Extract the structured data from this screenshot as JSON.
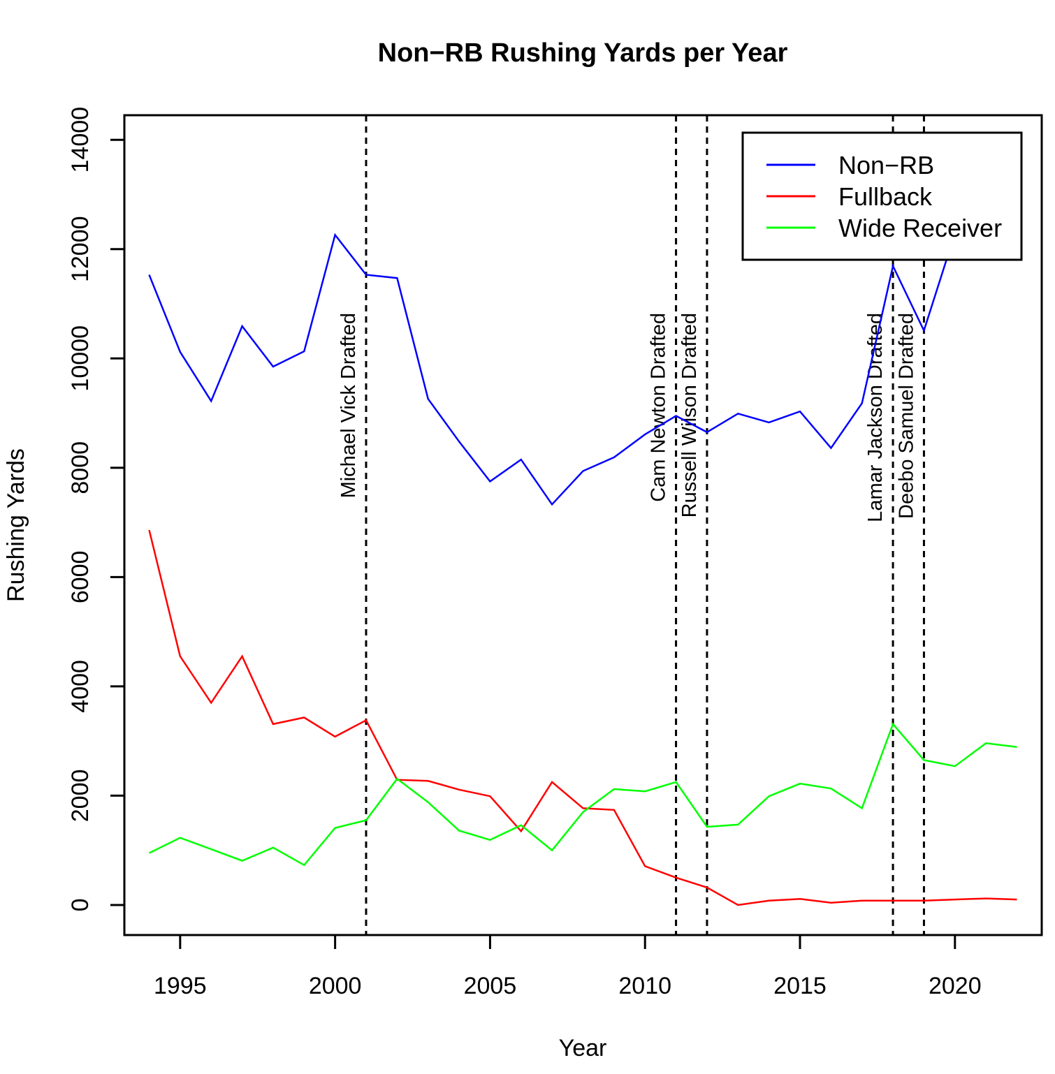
{
  "chart_data": {
    "type": "line",
    "title": "Non−RB Rushing Yards per Year",
    "xlabel": "Year",
    "ylabel": "Rushing Yards",
    "xlim": [
      1993.2,
      2022.8
    ],
    "ylim": [
      -550,
      14450
    ],
    "x_ticks": [
      1995,
      2000,
      2005,
      2010,
      2015,
      2020
    ],
    "y_ticks": [
      0,
      2000,
      4000,
      6000,
      8000,
      10000,
      12000,
      14000
    ],
    "x": [
      1994,
      1995,
      1996,
      1997,
      1998,
      1999,
      2000,
      2001,
      2002,
      2003,
      2004,
      2005,
      2006,
      2007,
      2008,
      2009,
      2010,
      2011,
      2012,
      2013,
      2014,
      2015,
      2016,
      2017,
      2018,
      2019,
      2020,
      2021,
      2022
    ],
    "series": [
      {
        "name": "Non−RB",
        "color": "#0000ff",
        "values": [
          11530,
          10120,
          9220,
          10590,
          9850,
          10130,
          12260,
          11530,
          11470,
          9260,
          8480,
          7750,
          8150,
          7330,
          7940,
          8190,
          8610,
          8950,
          8650,
          8990,
          8830,
          9030,
          8360,
          9180,
          11690,
          10510,
          12290,
          12860,
          13880
        ]
      },
      {
        "name": "Fullback",
        "color": "#ff0000",
        "values": [
          6860,
          4550,
          3700,
          4550,
          3310,
          3430,
          3080,
          3380,
          2290,
          2270,
          2110,
          1990,
          1350,
          2250,
          1770,
          1740,
          710,
          500,
          320,
          0,
          80,
          110,
          40,
          80,
          80,
          80,
          100,
          120,
          100
        ]
      },
      {
        "name": "Wide Receiver",
        "color": "#00ff00",
        "values": [
          950,
          1230,
          1020,
          810,
          1050,
          730,
          1410,
          1550,
          2310,
          1880,
          1360,
          1190,
          1460,
          1000,
          1700,
          2120,
          2080,
          2250,
          1430,
          1470,
          1990,
          2220,
          2130,
          1770,
          3310,
          2650,
          2540,
          2960,
          2890
        ]
      }
    ],
    "annotations": [
      {
        "x": 2001,
        "label": "Michael Vick Drafted"
      },
      {
        "x": 2011,
        "label": "Cam Newton Drafted"
      },
      {
        "x": 2012,
        "label": "Russell Wilson Drafted"
      },
      {
        "x": 2018,
        "label": "Lamar Jackson Drafted"
      },
      {
        "x": 2019,
        "label": "Deebo Samuel Drafted"
      }
    ],
    "legend": {
      "position": "top-right",
      "entries": [
        "Non−RB",
        "Fullback",
        "Wide Receiver"
      ]
    },
    "grid": false
  }
}
